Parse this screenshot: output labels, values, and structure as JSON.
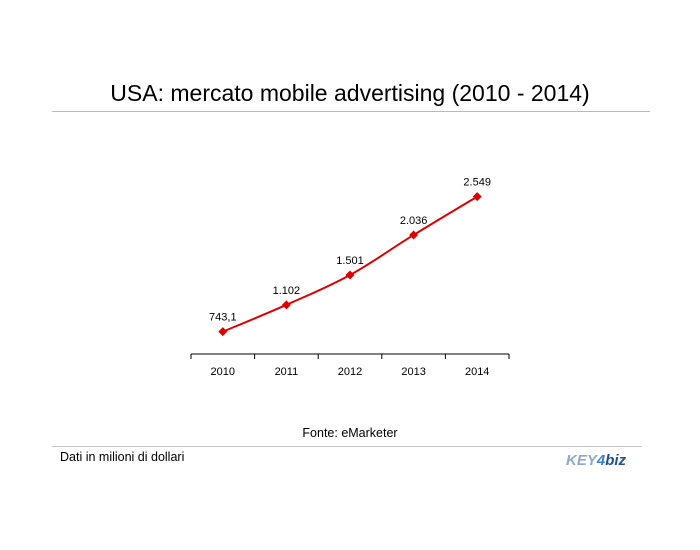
{
  "title": "USA: mercato mobile advertising (2010 - 2014)",
  "source": "Fonte: eMarketer",
  "note": "Dati in milioni di dollari",
  "logo": {
    "part1": "KEY",
    "part2": "4",
    "part3": "biz"
  },
  "colors": {
    "line": "#e00000",
    "axis": "#000000",
    "rule": "#b9b9b9"
  },
  "chart_data": {
    "type": "line",
    "categories": [
      "2010",
      "2011",
      "2012",
      "2013",
      "2014"
    ],
    "values": [
      743.1,
      1102,
      1501,
      2036,
      2549
    ],
    "data_labels": [
      "743,1",
      "1.102",
      "1.501",
      "2.036",
      "2.549"
    ],
    "marker": "diamond",
    "grid": false,
    "legend": "none"
  }
}
